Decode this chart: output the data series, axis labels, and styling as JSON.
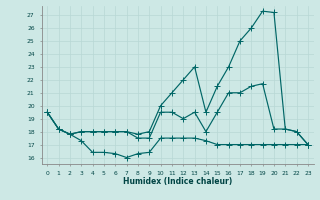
{
  "xlabel": "Humidex (Indice chaleur)",
  "bg_color": "#cde8e5",
  "line_color": "#006666",
  "grid_color": "#b8d8d5",
  "xlim": [
    -0.5,
    23.5
  ],
  "ylim": [
    15.5,
    27.7
  ],
  "yticks": [
    16,
    17,
    18,
    19,
    20,
    21,
    22,
    23,
    24,
    25,
    26,
    27
  ],
  "xticks": [
    0,
    1,
    2,
    3,
    4,
    5,
    6,
    7,
    8,
    9,
    10,
    11,
    12,
    13,
    14,
    15,
    16,
    17,
    18,
    19,
    20,
    21,
    22,
    23
  ],
  "line1_x": [
    0,
    1,
    2,
    3,
    4,
    5,
    6,
    7,
    8,
    9,
    10,
    11,
    12,
    13,
    14,
    15,
    16,
    17,
    18,
    19,
    20,
    21,
    22,
    23
  ],
  "line1_y": [
    19.5,
    18.2,
    17.8,
    17.3,
    16.4,
    16.4,
    16.3,
    16.0,
    16.3,
    16.4,
    17.5,
    17.5,
    17.5,
    17.5,
    17.3,
    17.0,
    17.0,
    17.0,
    17.0,
    17.0,
    17.0,
    17.0,
    17.0,
    17.0
  ],
  "line2_x": [
    0,
    1,
    2,
    3,
    4,
    5,
    6,
    7,
    8,
    9,
    10,
    11,
    12,
    13,
    14,
    15,
    16,
    17,
    18,
    19,
    20,
    21,
    22,
    23
  ],
  "line2_y": [
    19.5,
    18.2,
    17.8,
    18.0,
    18.0,
    18.0,
    18.0,
    18.0,
    17.5,
    17.5,
    19.5,
    19.5,
    19.0,
    19.5,
    18.0,
    19.5,
    21.0,
    21.0,
    21.5,
    21.7,
    18.2,
    18.2,
    18.0,
    17.0
  ],
  "line3_x": [
    0,
    1,
    2,
    3,
    4,
    5,
    6,
    7,
    8,
    9,
    10,
    11,
    12,
    13,
    14,
    15,
    16,
    17,
    18,
    19,
    20,
    21,
    22,
    23
  ],
  "line3_y": [
    19.5,
    18.2,
    17.8,
    18.0,
    18.0,
    18.0,
    18.0,
    18.0,
    17.8,
    18.0,
    20.0,
    21.0,
    22.0,
    23.0,
    19.5,
    21.5,
    23.0,
    25.0,
    26.0,
    27.3,
    27.2,
    18.2,
    18.0,
    17.0
  ],
  "xlabel_fontsize": 5.5,
  "tick_fontsize": 4.3
}
